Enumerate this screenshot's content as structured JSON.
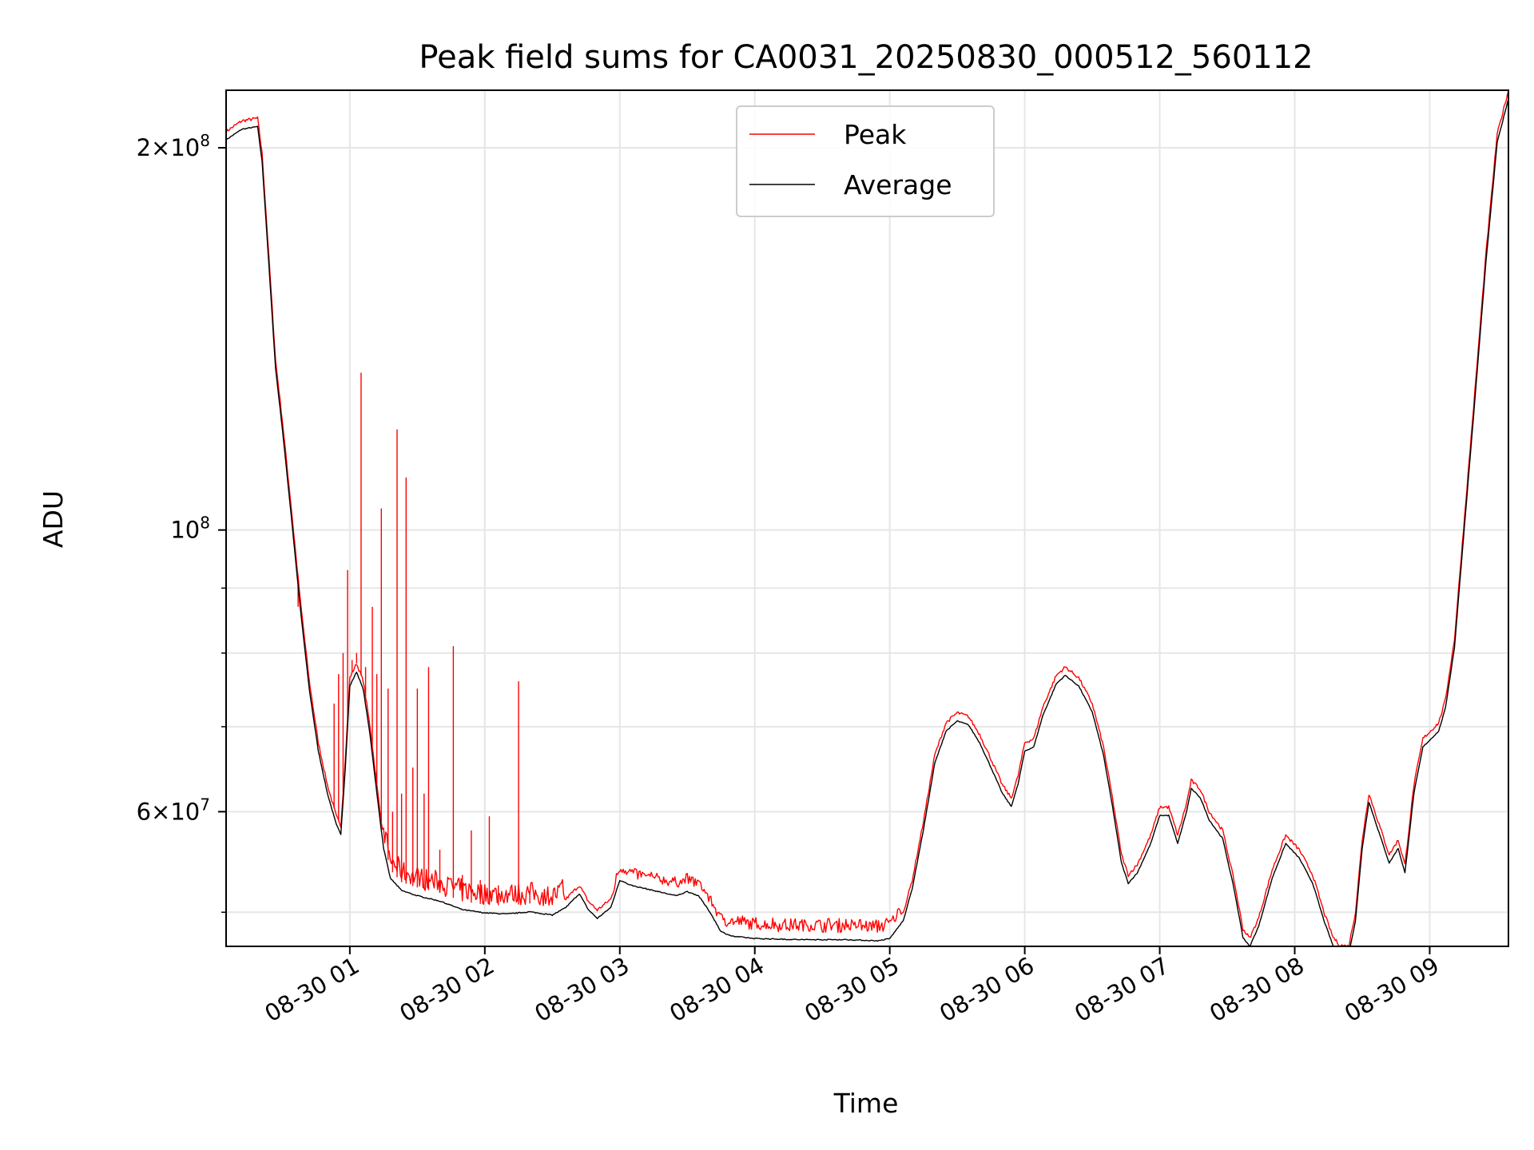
{
  "chart_data": {
    "type": "line",
    "title": "Peak field sums for CA0031_20250830_000512_560112",
    "xlabel": "Time",
    "ylabel": "ADU",
    "yscale": "log",
    "xlim": [
      "2025-08-30 00:05",
      "2025-08-30 09:35"
    ],
    "ylim": [
      47000000,
      222000000
    ],
    "grid": true,
    "legend": "upper center",
    "x_ticks": [
      "08-30 01",
      "08-30 02",
      "08-30 03",
      "08-30 04",
      "08-30 05",
      "08-30 06",
      "08-30 07",
      "08-30 08",
      "08-30 09"
    ],
    "x_tick_times": [
      "2025-08-30 01:00",
      "2025-08-30 02:00",
      "2025-08-30 03:00",
      "2025-08-30 04:00",
      "2025-08-30 05:00",
      "2025-08-30 06:00",
      "2025-08-30 07:00",
      "2025-08-30 08:00",
      "2025-08-30 09:00"
    ],
    "y_ticks": [
      {
        "value": 200000000,
        "mantissa": "2",
        "exp": "8"
      },
      {
        "value": 100000000,
        "mantissa": "",
        "exp": "8"
      },
      {
        "value": 60000000,
        "mantissa": "6",
        "exp": "7"
      }
    ],
    "y_minor_ticks": [
      50000000,
      70000000,
      80000000,
      90000000
    ],
    "series": [
      {
        "name": "Peak",
        "color": "#ff0000",
        "points": [
          [
            "2025-08-30 00:05",
            206000000
          ],
          [
            "2025-08-30 00:12",
            210000000
          ],
          [
            "2025-08-30 00:19",
            211000000
          ],
          [
            "2025-08-30 00:21",
            198000000
          ],
          [
            "2025-08-30 00:23",
            175000000
          ],
          [
            "2025-08-30 00:27",
            136000000
          ],
          [
            "2025-08-30 00:30",
            122000000
          ],
          [
            "2025-08-30 00:34",
            104000000
          ],
          [
            "2025-08-30 00:38",
            88000000
          ],
          [
            "2025-08-30 00:42",
            76000000
          ],
          [
            "2025-08-30 00:46",
            68000000
          ],
          [
            "2025-08-30 00:50",
            63000000
          ],
          [
            "2025-08-30 00:54",
            59500000
          ],
          [
            "2025-08-30 00:56",
            58500000
          ],
          [
            "2025-08-30 00:58",
            66000000
          ],
          [
            "2025-08-30 01:00",
            76500000
          ],
          [
            "2025-08-30 01:03",
            78500000
          ],
          [
            "2025-08-30 01:06",
            76000000
          ],
          [
            "2025-08-30 01:09",
            70000000
          ],
          [
            "2025-08-30 01:12",
            63000000
          ],
          [
            "2025-08-30 01:15",
            57000000
          ],
          [
            "2025-08-30 01:18",
            54000000
          ],
          [
            "2025-08-30 01:23",
            52800000
          ],
          [
            "2025-08-30 01:30",
            52300000
          ],
          [
            "2025-08-30 01:40",
            51800000
          ],
          [
            "2025-08-30 01:50",
            51000000
          ],
          [
            "2025-08-30 02:00",
            50700000
          ],
          [
            "2025-08-30 02:10",
            50600000
          ],
          [
            "2025-08-30 02:20",
            50800000
          ],
          [
            "2025-08-30 02:30",
            50500000
          ],
          [
            "2025-08-30 02:36",
            51200000
          ],
          [
            "2025-08-30 02:42",
            52500000
          ],
          [
            "2025-08-30 02:46",
            51000000
          ],
          [
            "2025-08-30 02:50",
            50200000
          ],
          [
            "2025-08-30 02:56",
            51200000
          ],
          [
            "2025-08-30 03:00",
            53800000
          ],
          [
            "2025-08-30 03:05",
            53300000
          ],
          [
            "2025-08-30 03:15",
            52800000
          ],
          [
            "2025-08-30 03:25",
            52300000
          ],
          [
            "2025-08-30 03:30",
            52700000
          ],
          [
            "2025-08-30 03:35",
            52300000
          ],
          [
            "2025-08-30 03:40",
            50800000
          ],
          [
            "2025-08-30 03:45",
            49000000
          ],
          [
            "2025-08-30 03:50",
            48600000
          ],
          [
            "2025-08-30 04:00",
            48400000
          ],
          [
            "2025-08-30 04:20",
            48300000
          ],
          [
            "2025-08-30 04:40",
            48300000
          ],
          [
            "2025-08-30 04:55",
            48200000
          ],
          [
            "2025-08-30 05:00",
            48400000
          ],
          [
            "2025-08-30 05:06",
            50000000
          ],
          [
            "2025-08-30 05:10",
            53000000
          ],
          [
            "2025-08-30 05:15",
            59000000
          ],
          [
            "2025-08-30 05:20",
            66500000
          ],
          [
            "2025-08-30 05:25",
            70500000
          ],
          [
            "2025-08-30 05:30",
            71800000
          ],
          [
            "2025-08-30 05:35",
            71300000
          ],
          [
            "2025-08-30 05:40",
            69000000
          ],
          [
            "2025-08-30 05:45",
            66000000
          ],
          [
            "2025-08-30 05:50",
            63000000
          ],
          [
            "2025-08-30 05:54",
            61500000
          ],
          [
            "2025-08-30 05:57",
            64000000
          ],
          [
            "2025-08-30 06:00",
            68000000
          ],
          [
            "2025-08-30 06:04",
            68500000
          ],
          [
            "2025-08-30 06:08",
            72500000
          ],
          [
            "2025-08-30 06:14",
            76800000
          ],
          [
            "2025-08-30 06:18",
            78000000
          ],
          [
            "2025-08-30 06:24",
            76500000
          ],
          [
            "2025-08-30 06:30",
            73000000
          ],
          [
            "2025-08-30 06:35",
            67500000
          ],
          [
            "2025-08-30 06:39",
            61500000
          ],
          [
            "2025-08-30 06:43",
            55500000
          ],
          [
            "2025-08-30 06:46",
            53500000
          ],
          [
            "2025-08-30 06:50",
            54500000
          ],
          [
            "2025-08-30 06:56",
            57500000
          ],
          [
            "2025-08-30 07:00",
            60500000
          ],
          [
            "2025-08-30 07:04",
            60500000
          ],
          [
            "2025-08-30 07:08",
            57500000
          ],
          [
            "2025-08-30 07:12",
            61000000
          ],
          [
            "2025-08-30 07:14",
            63500000
          ],
          [
            "2025-08-30 07:18",
            62500000
          ],
          [
            "2025-08-30 07:22",
            60000000
          ],
          [
            "2025-08-30 07:28",
            58000000
          ],
          [
            "2025-08-30 07:33",
            53000000
          ],
          [
            "2025-08-30 07:37",
            48500000
          ],
          [
            "2025-08-30 07:40",
            47700000
          ],
          [
            "2025-08-30 07:44",
            49500000
          ],
          [
            "2025-08-30 07:50",
            54000000
          ],
          [
            "2025-08-30 07:56",
            57500000
          ],
          [
            "2025-08-30 08:02",
            56000000
          ],
          [
            "2025-08-30 08:08",
            53500000
          ],
          [
            "2025-08-30 08:13",
            50000000
          ],
          [
            "2025-08-30 08:17",
            47800000
          ],
          [
            "2025-08-30 08:20",
            47100000
          ],
          [
            "2025-08-30 08:24",
            47000000
          ],
          [
            "2025-08-30 08:27",
            50000000
          ],
          [
            "2025-08-30 08:30",
            57000000
          ],
          [
            "2025-08-30 08:33",
            62000000
          ],
          [
            "2025-08-30 08:37",
            59000000
          ],
          [
            "2025-08-30 08:42",
            55500000
          ],
          [
            "2025-08-30 08:46",
            57000000
          ],
          [
            "2025-08-30 08:49",
            54500000
          ],
          [
            "2025-08-30 08:53",
            63000000
          ],
          [
            "2025-08-30 08:57",
            68500000
          ],
          [
            "2025-08-30 09:04",
            70500000
          ],
          [
            "2025-08-30 09:07",
            73500000
          ],
          [
            "2025-08-30 09:11",
            82000000
          ],
          [
            "2025-08-30 09:15",
            100000000
          ],
          [
            "2025-08-30 09:20",
            128000000
          ],
          [
            "2025-08-30 09:25",
            165000000
          ],
          [
            "2025-08-30 09:30",
            205000000
          ],
          [
            "2025-08-30 09:35",
            222000000
          ]
        ],
        "spikes": [
          [
            "2025-08-30 00:37",
            87000000
          ],
          [
            "2025-08-30 00:53",
            73000000
          ],
          [
            "2025-08-30 00:55",
            77000000
          ],
          [
            "2025-08-30 00:57",
            80000000
          ],
          [
            "2025-08-30 00:59",
            93000000
          ],
          [
            "2025-08-30 01:01",
            79000000
          ],
          [
            "2025-08-30 01:03",
            80000000
          ],
          [
            "2025-08-30 01:05",
            133000000
          ],
          [
            "2025-08-30 01:07",
            78000000
          ],
          [
            "2025-08-30 01:10",
            87000000
          ],
          [
            "2025-08-30 01:12",
            77000000
          ],
          [
            "2025-08-30 01:14",
            104000000
          ],
          [
            "2025-08-30 01:17",
            75000000
          ],
          [
            "2025-08-30 01:19",
            60000000
          ],
          [
            "2025-08-30 01:21",
            120000000
          ],
          [
            "2025-08-30 01:23",
            62000000
          ],
          [
            "2025-08-30 01:25",
            110000000
          ],
          [
            "2025-08-30 01:28",
            65000000
          ],
          [
            "2025-08-30 01:30",
            75000000
          ],
          [
            "2025-08-30 01:33",
            62000000
          ],
          [
            "2025-08-30 01:35",
            78000000
          ],
          [
            "2025-08-30 01:40",
            56000000
          ],
          [
            "2025-08-30 01:46",
            81000000
          ],
          [
            "2025-08-30 01:50",
            53500000
          ],
          [
            "2025-08-30 01:54",
            58000000
          ],
          [
            "2025-08-30 01:58",
            53000000
          ],
          [
            "2025-08-30 02:02",
            59500000
          ],
          [
            "2025-08-30 02:06",
            52500000
          ],
          [
            "2025-08-30 02:15",
            76000000
          ],
          [
            "2025-08-30 02:20",
            52000000
          ]
        ],
        "noise_band": [
          [
            "2025-08-30 01:15",
            "2025-08-30 02:35",
            2000000
          ],
          [
            "2025-08-30 02:58",
            "2025-08-30 03:45",
            900000
          ],
          [
            "2025-08-30 03:45",
            "2025-08-30 05:05",
            1100000
          ]
        ]
      },
      {
        "name": "Average",
        "color": "#000000",
        "offset_ratio": 0.985
      }
    ]
  }
}
